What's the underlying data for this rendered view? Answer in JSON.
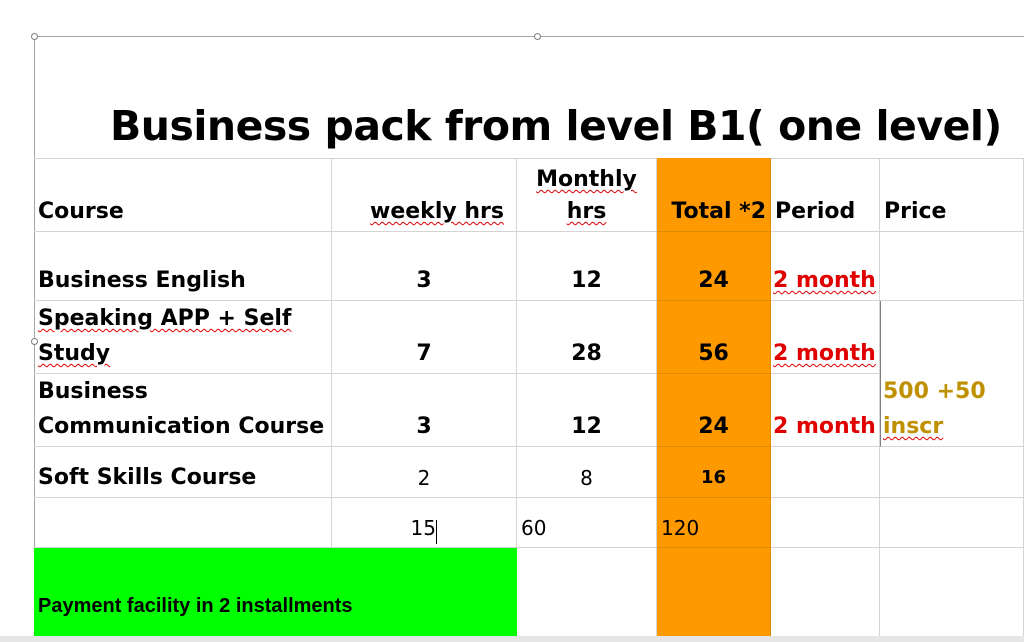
{
  "title": "Business pack from level B1( one level)",
  "headers": {
    "course": "Course",
    "weekly": "weekly hrs",
    "monthly_line1": "Monthly",
    "monthly_line2": "hrs",
    "total": "Total *2",
    "period": "Period",
    "price": "Price"
  },
  "rows": [
    {
      "course": "Business English",
      "weekly": "3",
      "monthly": "12",
      "total": "24",
      "period": "2 month"
    },
    {
      "course_line1": "Speaking  APP + Self",
      "course_line2": "Study",
      "weekly": "7",
      "monthly": "28",
      "total": "56",
      "period": "2 month"
    },
    {
      "course_line1": "Business",
      "course_line2": "Communication Course",
      "weekly": "3",
      "monthly": "12",
      "total": "24",
      "period": "2 month"
    },
    {
      "course": "Soft Skills Course",
      "weekly": "2",
      "monthly": "8",
      "total": "16"
    }
  ],
  "price": {
    "line1": "500 +50",
    "line2": "inscr"
  },
  "totals": {
    "weekly": "15",
    "monthly": "60",
    "total": "120"
  },
  "payment_note": "Payment facility in 2 installments",
  "colors": {
    "total_column": "#ff9900",
    "payment_cell": "#00ff00",
    "period_text": "#e00000",
    "price_text": "#bf9000"
  }
}
